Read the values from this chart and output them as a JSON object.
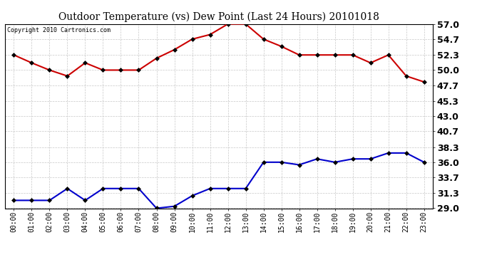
{
  "title": "Outdoor Temperature (vs) Dew Point (Last 24 Hours) 20101018",
  "copyright_text": "Copyright 2010 Cartronics.com",
  "x_labels": [
    "00:00",
    "01:00",
    "02:00",
    "03:00",
    "04:00",
    "05:00",
    "06:00",
    "07:00",
    "08:00",
    "09:00",
    "10:00",
    "11:00",
    "12:00",
    "13:00",
    "14:00",
    "15:00",
    "16:00",
    "17:00",
    "18:00",
    "19:00",
    "20:00",
    "21:00",
    "22:00",
    "23:00"
  ],
  "temp_values": [
    52.3,
    51.1,
    50.0,
    49.1,
    51.1,
    50.0,
    50.0,
    50.0,
    51.8,
    53.1,
    54.7,
    55.4,
    57.0,
    57.0,
    54.7,
    53.6,
    52.3,
    52.3,
    52.3,
    52.3,
    51.1,
    52.3,
    49.1,
    48.2
  ],
  "dew_values": [
    30.2,
    30.2,
    30.2,
    32.0,
    30.2,
    32.0,
    32.0,
    32.0,
    29.0,
    29.3,
    30.9,
    32.0,
    32.0,
    32.0,
    36.0,
    36.0,
    35.6,
    36.5,
    36.0,
    36.5,
    36.5,
    37.4,
    37.4,
    36.0
  ],
  "temp_color": "#cc0000",
  "dew_color": "#0000cc",
  "marker": "D",
  "marker_size": 3,
  "line_width": 1.5,
  "y_min": 29.0,
  "y_max": 57.0,
  "y_ticks": [
    29.0,
    31.3,
    33.7,
    36.0,
    38.3,
    40.7,
    43.0,
    45.3,
    47.7,
    50.0,
    52.3,
    54.7,
    57.0
  ],
  "background_color": "#ffffff",
  "plot_bg_color": "#ffffff",
  "grid_color": "#c8c8c8",
  "title_fontsize": 10,
  "tick_fontsize": 7,
  "copyright_fontsize": 6,
  "y_tick_fontsize": 9,
  "y_tick_fontweight": "bold"
}
